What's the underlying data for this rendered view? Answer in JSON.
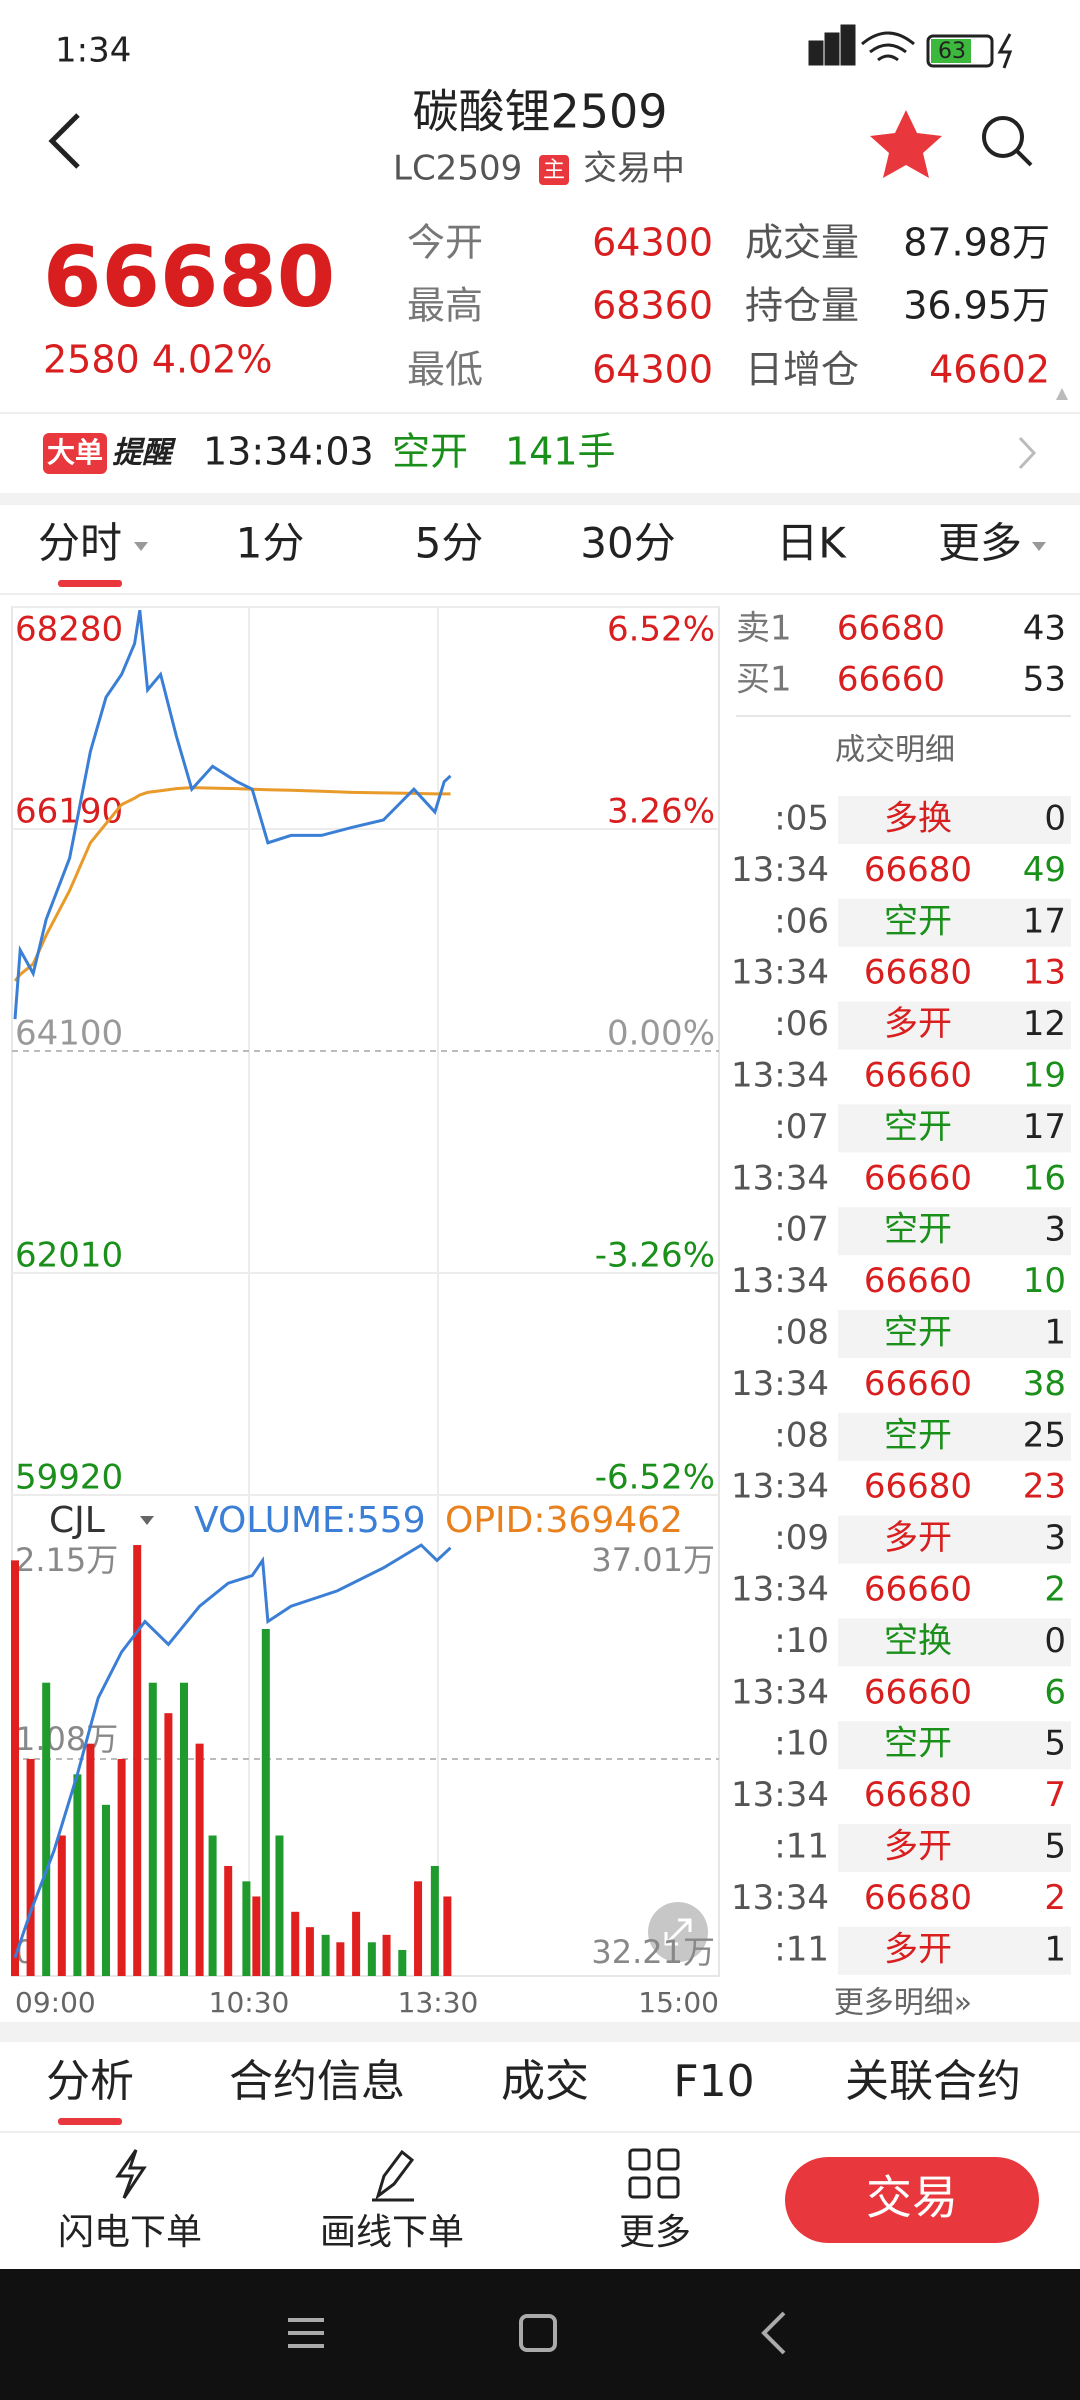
{
  "status_bar": {
    "time": "1:34",
    "battery": "63"
  },
  "header": {
    "title": "碳酸锂2509",
    "code": "LC2509",
    "badge": "主",
    "status": "交易中"
  },
  "quote": {
    "price": "66680",
    "change": "2580 4.02%",
    "stats": [
      [
        "今开",
        "64300",
        "成交量",
        "87.98万"
      ],
      [
        "最高",
        "68360",
        "持仓量",
        "36.95万"
      ],
      [
        "最低",
        "64300",
        "日增仓",
        "46602"
      ]
    ]
  },
  "alert": {
    "badge": "大单",
    "label": "提醒",
    "time": "13:34:03",
    "action": "空开",
    "size": "141手"
  },
  "period_tabs": [
    "分时",
    "1分",
    "5分",
    "30分",
    "日K",
    "更多"
  ],
  "time_axis": [
    "09:00",
    "10:30",
    "13:30",
    "15:00"
  ],
  "price_chart": {
    "type": "line",
    "ylim": [
      59920,
      68280
    ],
    "yticks": [
      68280,
      66190,
      64100,
      62010,
      59920
    ],
    "y2lim": [
      -6.52,
      6.52
    ],
    "y2ticks": [
      {
        "value": 6.52,
        "label": "6.52%"
      },
      {
        "value": 3.26,
        "label": "3.26%"
      },
      {
        "value": 0,
        "label": "0.00%"
      },
      {
        "value": -3.26,
        "label": "-3.26%"
      },
      {
        "value": -6.52,
        "label": "-6.52%"
      }
    ],
    "x": [
      "09:00",
      "09:02",
      "09:07",
      "09:12",
      "09:21",
      "09:29",
      "09:35",
      "09:41",
      "09:46",
      "09:48",
      "09:51",
      "09:56",
      "10:02",
      "10:08",
      "10:16",
      "10:25",
      "10:33",
      "10:48",
      "11:10",
      "11:39",
      "12:08",
      "12:38",
      "13:07",
      "13:27",
      "13:32",
      "13:34"
    ],
    "series": [
      {
        "color": "#3a7fd5",
        "values": [
          64400,
          65050,
          64830,
          65340,
          65915,
          66920,
          67430,
          67645,
          67935,
          68250,
          67500,
          67645,
          67070,
          66565,
          66780,
          66640,
          66565,
          66060,
          66130,
          66130,
          66205,
          66275,
          66565,
          66350,
          66635,
          66690
        ]
      },
      {
        "color": "#e89a2a",
        "values": [
          64760,
          64820,
          64920,
          65190,
          65610,
          66060,
          66240,
          66420,
          66480,
          66510,
          66535,
          66550,
          66570,
          66580,
          66575,
          66570,
          66565,
          66560,
          66555,
          66545,
          66535,
          66530,
          66525,
          66520,
          66520,
          66520
        ]
      }
    ]
  },
  "volume_chart": {
    "type": "bar",
    "name": "CJL",
    "volume_label": "VOLUME:559",
    "opid_label": "OPID:369462",
    "ylim": [
      0,
      21500
    ],
    "yticks": [
      {
        "value": 21500,
        "label": "2.15万"
      },
      {
        "value": 10750,
        "label": "1.08万"
      },
      0
    ],
    "y2lim": [
      322100,
      370100
    ],
    "y2ticks": [
      {
        "value": 370100,
        "label": "37.01万"
      },
      {
        "value": 322100,
        "label": "32.21万"
      }
    ],
    "x": [
      "09:00",
      "09:06",
      "09:12",
      "09:18",
      "09:24",
      "09:29",
      "09:35",
      "09:41",
      "09:47",
      "09:53",
      "09:59",
      "10:05",
      "10:11",
      "10:16",
      "10:22",
      "10:29",
      "10:37",
      "10:46",
      "10:59",
      "11:14",
      "11:28",
      "11:43",
      "11:57",
      "12:12",
      "12:27",
      "12:41",
      "12:56",
      "13:11",
      "13:27",
      "13:33"
    ],
    "values": [
      20590,
      10750,
      14530,
      6960,
      9990,
      11510,
      8480,
      10750,
      21350,
      14530,
      13020,
      14530,
      11510,
      6960,
      5450,
      4690,
      3940,
      17190,
      6960,
      3180,
      2420,
      2040,
      1670,
      3180,
      1670,
      2040,
      1290,
      4690,
      5450,
      3940
    ],
    "colors": [
      "#e0201f",
      "#e0201f",
      "#1f9a2c",
      "#e0201f",
      "#1f9a2c",
      "#e0201f",
      "#1f9a2c",
      "#e0201f",
      "#e0201f",
      "#1f9a2c",
      "#e0201f",
      "#1f9a2c",
      "#e0201f",
      "#1f9a2c",
      "#e0201f",
      "#1f9a2c",
      "#e0201f",
      "#1f9a2c",
      "#1f9a2c",
      "#e0201f",
      "#e0201f",
      "#1f9a2c",
      "#e0201f",
      "#e0201f",
      "#1f9a2c",
      "#e0201f",
      "#1f9a2c",
      "#e0201f",
      "#1f9a2c",
      "#e0201f"
    ],
    "oi": {
      "color": "#3a7fd5",
      "x": [
        "09:00",
        "09:06",
        "09:15",
        "09:24",
        "09:32",
        "09:41",
        "09:50",
        "09:59",
        "10:11",
        "10:22",
        "10:33",
        "10:43",
        "10:48",
        "11:10",
        "11:54",
        "12:38",
        "13:14",
        "13:29",
        "13:34"
      ],
      "values": [
        324130,
        329200,
        335960,
        344410,
        352860,
        357930,
        361310,
        358770,
        363000,
        365540,
        366380,
        368070,
        361310,
        363000,
        364690,
        367230,
        369760,
        368070,
        369460
      ]
    }
  },
  "order_book": {
    "rows": [
      [
        "卖1",
        "66680",
        "43"
      ],
      [
        "买1",
        "66660",
        "53"
      ]
    ],
    "title": "成交明细",
    "trades": [
      {
        "time": ":05",
        "price": "多换",
        "volume": "0",
        "color": "#d81e1e"
      },
      {
        "time": "13:34",
        "price": "66680",
        "volume": "49",
        "color": "#1a8f1a"
      },
      {
        "time": ":06",
        "price": "空开",
        "volume": "17",
        "color": "#1a8f1a"
      },
      {
        "time": "13:34",
        "price": "66680",
        "volume": "13",
        "color": "#d81e1e"
      },
      {
        "time": ":06",
        "price": "多开",
        "volume": "12",
        "color": "#d81e1e"
      },
      {
        "time": "13:34",
        "price": "66660",
        "volume": "19",
        "color": "#1a8f1a"
      },
      {
        "time": ":07",
        "price": "空开",
        "volume": "17",
        "color": "#1a8f1a"
      },
      {
        "time": "13:34",
        "price": "66660",
        "volume": "16",
        "color": "#1a8f1a"
      },
      {
        "time": ":07",
        "price": "空开",
        "volume": "3",
        "color": "#1a8f1a"
      },
      {
        "time": "13:34",
        "price": "66660",
        "volume": "10",
        "color": "#1a8f1a"
      },
      {
        "time": ":08",
        "price": "空开",
        "volume": "1",
        "color": "#1a8f1a"
      },
      {
        "time": "13:34",
        "price": "66660",
        "volume": "38",
        "color": "#1a8f1a"
      },
      {
        "time": ":08",
        "price": "空开",
        "volume": "25",
        "color": "#1a8f1a"
      },
      {
        "time": "13:34",
        "price": "66680",
        "volume": "23",
        "color": "#d81e1e"
      },
      {
        "time": ":09",
        "price": "多开",
        "volume": "3",
        "color": "#d81e1e"
      },
      {
        "time": "13:34",
        "price": "66660",
        "volume": "2",
        "color": "#1a8f1a"
      },
      {
        "time": ":10",
        "price": "空换",
        "volume": "0",
        "color": "#1a8f1a"
      },
      {
        "time": "13:34",
        "price": "66660",
        "volume": "6",
        "color": "#1a8f1a"
      },
      {
        "time": ":10",
        "price": "空开",
        "volume": "5",
        "color": "#1a8f1a"
      },
      {
        "time": "13:34",
        "price": "66680",
        "volume": "7",
        "color": "#d81e1e"
      },
      {
        "time": ":11",
        "price": "多开",
        "volume": "5",
        "color": "#d81e1e"
      },
      {
        "time": "13:34",
        "price": "66680",
        "volume": "2",
        "color": "#d81e1e"
      },
      {
        "time": ":11",
        "price": "多开",
        "volume": "1",
        "color": "#d81e1e"
      }
    ],
    "more": "更多明细»"
  },
  "bottom_tabs": [
    "分析",
    "合约信息",
    "成交",
    "F10",
    "关联合约"
  ],
  "toolbar": [
    "闪电下单",
    "画线下单",
    "更多"
  ],
  "trade_button": "交易"
}
